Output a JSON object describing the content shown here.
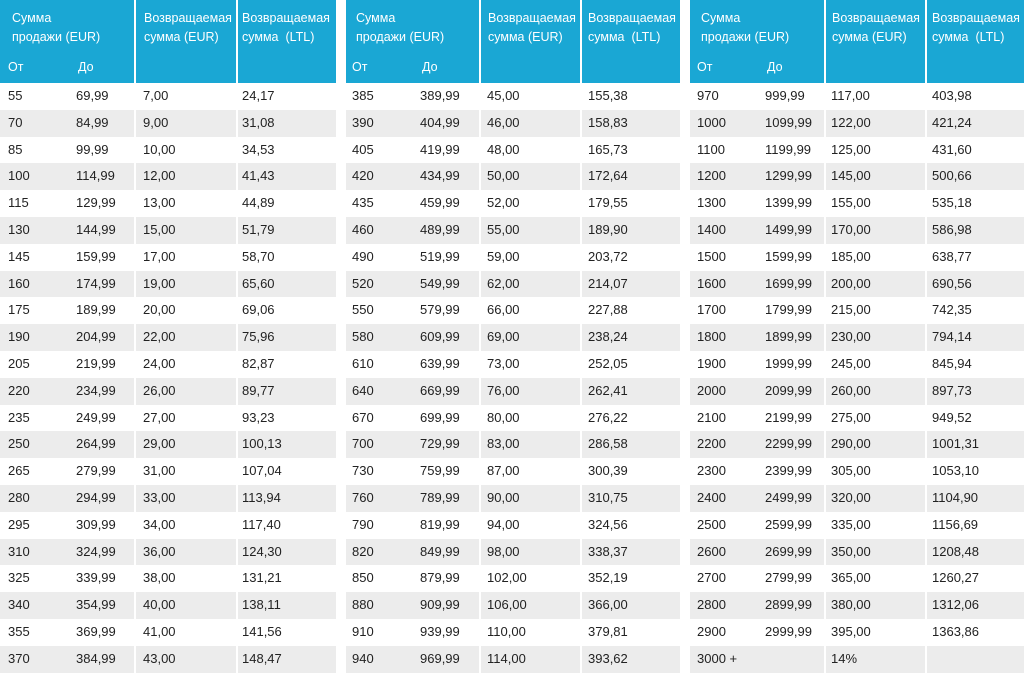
{
  "headers": [
    {
      "sale_amount": "Сумма\nпродажи (EUR)",
      "refund_eur": "Возвращаемая\nсумма (EUR)",
      "refund_ltl": "Возвращаемая\nсумма  (LTL)",
      "from": "От",
      "to": "До"
    },
    {
      "sale_amount": "Сумма\nпродажи (EUR)",
      "refund_eur": "Возвращаемая\nсумма (EUR)",
      "refund_ltl": "Возвращаемая\nсумма  (LTL)",
      "from": "От",
      "to": "До"
    },
    {
      "sale_amount": "Сумма\nпродажи (EUR)",
      "refund_eur": "Возвращаемая\nсумма (EUR)",
      "refund_ltl": "Возвращаемая\nсумма  (LTL)",
      "from": "От",
      "to": "До"
    }
  ],
  "tables": [
    [
      [
        "55",
        "69,99",
        "7,00",
        "24,17"
      ],
      [
        "70",
        "84,99",
        "9,00",
        "31,08"
      ],
      [
        "85",
        "99,99",
        "10,00",
        "34,53"
      ],
      [
        "100",
        "114,99",
        "12,00",
        "41,43"
      ],
      [
        "115",
        "129,99",
        "13,00",
        "44,89"
      ],
      [
        "130",
        "144,99",
        "15,00",
        "51,79"
      ],
      [
        "145",
        "159,99",
        "17,00",
        "58,70"
      ],
      [
        "160",
        "174,99",
        "19,00",
        "65,60"
      ],
      [
        "175",
        "189,99",
        "20,00",
        "69,06"
      ],
      [
        "190",
        "204,99",
        "22,00",
        "75,96"
      ],
      [
        "205",
        "219,99",
        "24,00",
        "82,87"
      ],
      [
        "220",
        "234,99",
        "26,00",
        "89,77"
      ],
      [
        "235",
        "249,99",
        "27,00",
        "93,23"
      ],
      [
        "250",
        "264,99",
        "29,00",
        "100,13"
      ],
      [
        "265",
        "279,99",
        "31,00",
        "107,04"
      ],
      [
        "280",
        "294,99",
        "33,00",
        "113,94"
      ],
      [
        "295",
        "309,99",
        "34,00",
        "117,40"
      ],
      [
        "310",
        "324,99",
        "36,00",
        "124,30"
      ],
      [
        "325",
        "339,99",
        "38,00",
        "131,21"
      ],
      [
        "340",
        "354,99",
        "40,00",
        "138,11"
      ],
      [
        "355",
        "369,99",
        "41,00",
        "141,56"
      ],
      [
        "370",
        "384,99",
        "43,00",
        "148,47"
      ]
    ],
    [
      [
        "385",
        "389,99",
        "45,00",
        "155,38"
      ],
      [
        "390",
        "404,99",
        "46,00",
        "158,83"
      ],
      [
        "405",
        "419,99",
        "48,00",
        "165,73"
      ],
      [
        "420",
        "434,99",
        "50,00",
        "172,64"
      ],
      [
        "435",
        "459,99",
        "52,00",
        "179,55"
      ],
      [
        "460",
        "489,99",
        "55,00",
        "189,90"
      ],
      [
        "490",
        "519,99",
        "59,00",
        "203,72"
      ],
      [
        "520",
        "549,99",
        "62,00",
        "214,07"
      ],
      [
        "550",
        "579,99",
        "66,00",
        "227,88"
      ],
      [
        "580",
        "609,99",
        "69,00",
        "238,24"
      ],
      [
        "610",
        "639,99",
        "73,00",
        "252,05"
      ],
      [
        "640",
        "669,99",
        "76,00",
        "262,41"
      ],
      [
        "670",
        "699,99",
        "80,00",
        "276,22"
      ],
      [
        "700",
        "729,99",
        "83,00",
        "286,58"
      ],
      [
        "730",
        "759,99",
        "87,00",
        "300,39"
      ],
      [
        "760",
        "789,99",
        "90,00",
        "310,75"
      ],
      [
        "790",
        "819,99",
        "94,00",
        "324,56"
      ],
      [
        "820",
        "849,99",
        "98,00",
        "338,37"
      ],
      [
        "850",
        "879,99",
        "102,00",
        "352,19"
      ],
      [
        "880",
        "909,99",
        "106,00",
        "366,00"
      ],
      [
        "910",
        "939,99",
        "110,00",
        "379,81"
      ],
      [
        "940",
        "969,99",
        "114,00",
        "393,62"
      ]
    ],
    [
      [
        "970",
        "999,99",
        "117,00",
        "403,98"
      ],
      [
        "1000",
        "1099,99",
        "122,00",
        "421,24"
      ],
      [
        "1100",
        "1199,99",
        "125,00",
        "431,60"
      ],
      [
        "1200",
        "1299,99",
        "145,00",
        "500,66"
      ],
      [
        "1300",
        "1399,99",
        "155,00",
        "535,18"
      ],
      [
        "1400",
        "1499,99",
        "170,00",
        "586,98"
      ],
      [
        "1500",
        "1599,99",
        "185,00",
        "638,77"
      ],
      [
        "1600",
        "1699,99",
        "200,00",
        "690,56"
      ],
      [
        "1700",
        "1799,99",
        "215,00",
        "742,35"
      ],
      [
        "1800",
        "1899,99",
        "230,00",
        "794,14"
      ],
      [
        "1900",
        "1999,99",
        "245,00",
        "845,94"
      ],
      [
        "2000",
        "2099,99",
        "260,00",
        "897,73"
      ],
      [
        "2100",
        "2199,99",
        "275,00",
        "949,52"
      ],
      [
        "2200",
        "2299,99",
        "290,00",
        "1001,31"
      ],
      [
        "2300",
        "2399,99",
        "305,00",
        "1053,10"
      ],
      [
        "2400",
        "2499,99",
        "320,00",
        "1104,90"
      ],
      [
        "2500",
        "2599,99",
        "335,00",
        "1156,69"
      ],
      [
        "2600",
        "2699,99",
        "350,00",
        "1208,48"
      ],
      [
        "2700",
        "2799,99",
        "365,00",
        "1260,27"
      ],
      [
        "2800",
        "2899,99",
        "380,00",
        "1312,06"
      ],
      [
        "2900",
        "2999,99",
        "395,00",
        "1363,86"
      ],
      [
        "3000 +",
        "",
        "14%",
        ""
      ]
    ]
  ]
}
